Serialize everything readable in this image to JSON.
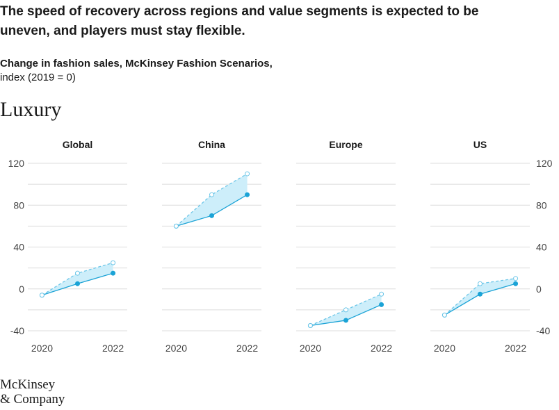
{
  "header": {
    "title_lines": [
      "The speed of recovery across regions and value segments is expected to be",
      "uneven, and players must stay flexible."
    ],
    "subtitle": "Change in fashion sales, McKinsey Fashion Scenarios,",
    "subtitle_units": "index (2019 = 0)",
    "section": "Luxury"
  },
  "footer": {
    "logo_lines": [
      "McKinsey",
      "& Company"
    ]
  },
  "chart_data": [
    {
      "type": "line",
      "title": "Global",
      "x": [
        2020,
        2021,
        2022
      ],
      "xlim": [
        2019.6,
        2022.4
      ],
      "xticks": [
        2020,
        2022
      ],
      "ylim": [
        -40,
        120
      ],
      "yticks": [
        -40,
        0,
        40,
        80,
        120
      ],
      "minor_yticks": [
        -20,
        20,
        60,
        100
      ],
      "grid": true,
      "y_axis_side": "left",
      "fill_color": "#cdeefa",
      "series": [
        {
          "color": "#1ba3d6",
          "style": "solid",
          "marker": "filled",
          "values": [
            -6,
            5,
            15
          ]
        },
        {
          "color": "#6cc6e8",
          "style": "dashed",
          "marker": "open",
          "values": [
            -6,
            15,
            25
          ]
        }
      ]
    },
    {
      "type": "line",
      "title": "China",
      "x": [
        2020,
        2021,
        2022
      ],
      "xlim": [
        2019.6,
        2022.4
      ],
      "xticks": [
        2020,
        2022
      ],
      "ylim": [
        -40,
        120
      ],
      "yticks": [
        -40,
        0,
        40,
        80,
        120
      ],
      "minor_yticks": [
        -20,
        20,
        60,
        100
      ],
      "grid": true,
      "y_axis_side": "none",
      "fill_color": "#cdeefa",
      "series": [
        {
          "color": "#1ba3d6",
          "style": "solid",
          "marker": "filled",
          "values": [
            60,
            70,
            90
          ]
        },
        {
          "color": "#6cc6e8",
          "style": "dashed",
          "marker": "open",
          "values": [
            60,
            90,
            110
          ]
        }
      ]
    },
    {
      "type": "line",
      "title": "Europe",
      "x": [
        2020,
        2021,
        2022
      ],
      "xlim": [
        2019.6,
        2022.4
      ],
      "xticks": [
        2020,
        2022
      ],
      "ylim": [
        -40,
        120
      ],
      "yticks": [
        -40,
        0,
        40,
        80,
        120
      ],
      "minor_yticks": [
        -20,
        20,
        60,
        100
      ],
      "grid": true,
      "y_axis_side": "none",
      "fill_color": "#cdeefa",
      "series": [
        {
          "color": "#1ba3d6",
          "style": "solid",
          "marker": "filled",
          "values": [
            -35,
            -30,
            -15
          ]
        },
        {
          "color": "#6cc6e8",
          "style": "dashed",
          "marker": "open",
          "values": [
            -35,
            -20,
            -5
          ]
        }
      ]
    },
    {
      "type": "line",
      "title": "US",
      "x": [
        2020,
        2021,
        2022
      ],
      "xlim": [
        2019.6,
        2022.4
      ],
      "xticks": [
        2020,
        2022
      ],
      "ylim": [
        -40,
        120
      ],
      "yticks": [
        -40,
        0,
        40,
        80,
        120
      ],
      "minor_yticks": [
        -20,
        20,
        60,
        100
      ],
      "grid": true,
      "y_axis_side": "right",
      "fill_color": "#cdeefa",
      "series": [
        {
          "color": "#1ba3d6",
          "style": "solid",
          "marker": "filled",
          "values": [
            -25,
            -5,
            5
          ]
        },
        {
          "color": "#6cc6e8",
          "style": "dashed",
          "marker": "open",
          "values": [
            -25,
            5,
            10
          ]
        }
      ]
    }
  ]
}
